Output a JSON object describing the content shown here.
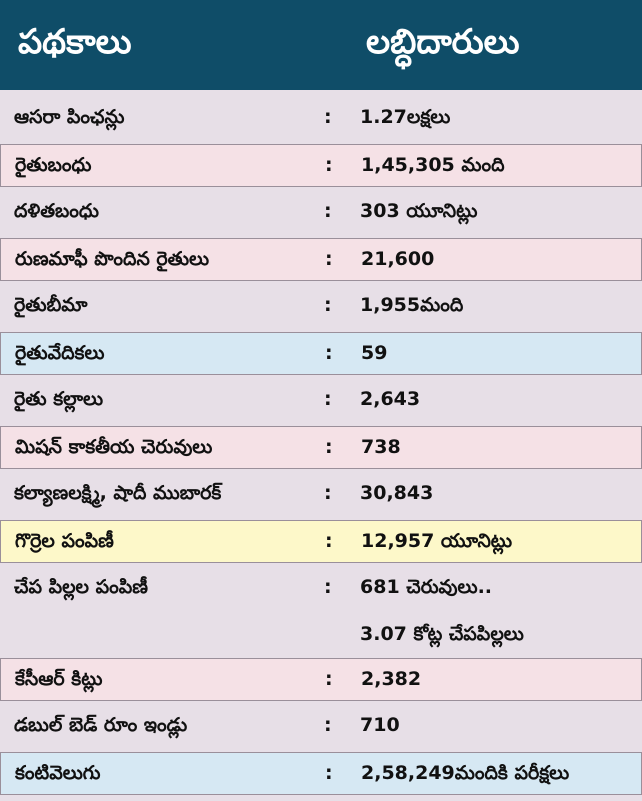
{
  "header": {
    "scheme_label": "పథకాలు",
    "beneficiary_label": "లబ్ధిదారులు"
  },
  "rows": [
    {
      "name": "ఆసరా పింఛన్లు",
      "colon": ":",
      "value": "1.27లక్షలు"
    },
    {
      "name": "రైతుబంధు",
      "colon": ":",
      "value": "1,45,305 మంది"
    },
    {
      "name": "దళితబంధు",
      "colon": ":",
      "value": "303 యూనిట్లు"
    },
    {
      "name": "రుణమాఫీ పొందిన రైతులు",
      "colon": ":",
      "value": "21,600"
    },
    {
      "name": "రైతుబీమా",
      "colon": ":",
      "value": "1,955మంది"
    },
    {
      "name": "రైతువేదికలు",
      "colon": ":",
      "value": "59"
    },
    {
      "name": "రైతు కల్లాలు",
      "colon": ":",
      "value": "2,643"
    },
    {
      "name": "మిషన్ కాకతీయ చెరువులు",
      "colon": ":",
      "value": "738"
    },
    {
      "name": "కల్యాణలక్ష్మి, షాదీ ముబారక్",
      "colon": ":",
      "value": "30,843"
    },
    {
      "name": "గొర్రెల పంపిణీ",
      "colon": ":",
      "value": "12,957 యూనిట్లు"
    },
    {
      "name": "చేప పిల్లల పంపిణీ",
      "colon": ":",
      "value": "681 చెరువులు.."
    },
    {
      "name": "",
      "colon": "",
      "value": "3.07 కోట్ల చేపపిల్లలు"
    },
    {
      "name": "కేసీఆర్ కిట్లు",
      "colon": ":",
      "value": "2,382"
    },
    {
      "name": "డబుల్ బెడ్ రూం ఇండ్లు",
      "colon": ":",
      "value": "710"
    },
    {
      "name": "కంటివెలుగు",
      "colon": ":",
      "value": "2,58,249మందికి పరీక్షలు"
    }
  ]
}
